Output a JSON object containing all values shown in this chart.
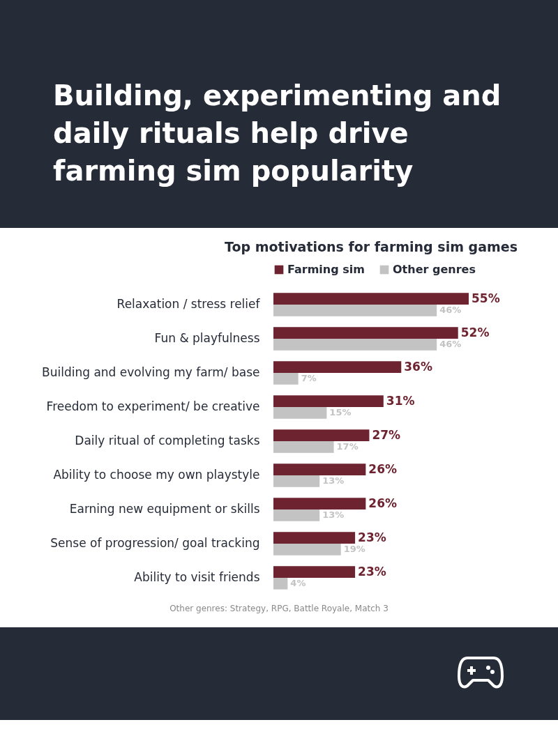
{
  "chart_data": {
    "type": "bar",
    "orientation": "horizontal",
    "title": "Building, experimenting and daily rituals help drive farming sim popularity",
    "subtitle": "Top motivations for farming sim games",
    "categories": [
      "Relaxation / stress relief",
      "Fun & playfulness",
      "Building and evolving my farm/ base",
      "Freedom to experiment/ be creative",
      "Daily ritual of completing tasks",
      "Ability to choose my own playstyle",
      "Earning new equipment or skills",
      "Sense of progression/ goal tracking",
      "Ability to visit friends"
    ],
    "series": [
      {
        "name": "Farming sim",
        "color": "#6e2430",
        "values": [
          55,
          52,
          36,
          31,
          27,
          26,
          26,
          23,
          23
        ],
        "value_labels": [
          "55%",
          "52%",
          "36%",
          "31%",
          "27%",
          "26%",
          "26%",
          "23%",
          "23%"
        ]
      },
      {
        "name": "Other genres",
        "color": "#c3c3c3",
        "values": [
          46,
          46,
          7,
          15,
          17,
          13,
          13,
          19,
          4
        ],
        "value_labels": [
          "46%",
          "46%",
          "7%",
          "15%",
          "17%",
          "13%",
          "13%",
          "19%",
          "4%"
        ]
      }
    ],
    "legend": "top",
    "grid": false,
    "annotations": [
      "Other genres: Strategy, RPG, Battle Royale, Match 3"
    ]
  }
}
